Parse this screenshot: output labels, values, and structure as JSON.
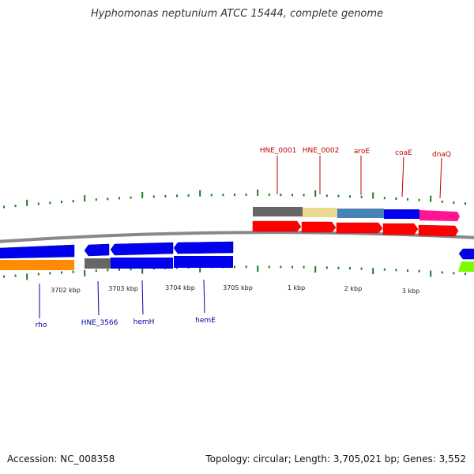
{
  "title": "Hyphomonas neptunium ATCC 15444, complete genome",
  "footer": {
    "accession": "Accession: NC_008358",
    "topology": "Topology: circular; Length: 3,705,021 bp; Genes: 3,552"
  },
  "colors": {
    "backbone": "#888888",
    "tick": "#1e7a1e",
    "forward_label": "#c00000",
    "reverse_label": "#0000a0",
    "forward_cds": "#ff0000",
    "reverse_cds": "#0000ee"
  },
  "scale_labels": [
    "3702 kbp",
    "3703 kbp",
    "3704 kbp",
    "3705 kbp",
    "1 kbp",
    "2 kbp",
    "3 kbp"
  ],
  "forward_genes": [
    "HNE_0001",
    "HNE_0002",
    "aroE",
    "coaE",
    "dnaQ"
  ],
  "reverse_genes": [
    "rho",
    "HNE_3566",
    "hemH",
    "hemE"
  ],
  "forward_bar_colors": [
    "#666666",
    "#e8d890",
    "#4682b4",
    "#0000ee",
    "#ff1493"
  ],
  "reverse_bar_colors": [
    "#ff8c00",
    "#666666",
    "#0000ee",
    "#0000ee",
    "#7cfc00"
  ]
}
